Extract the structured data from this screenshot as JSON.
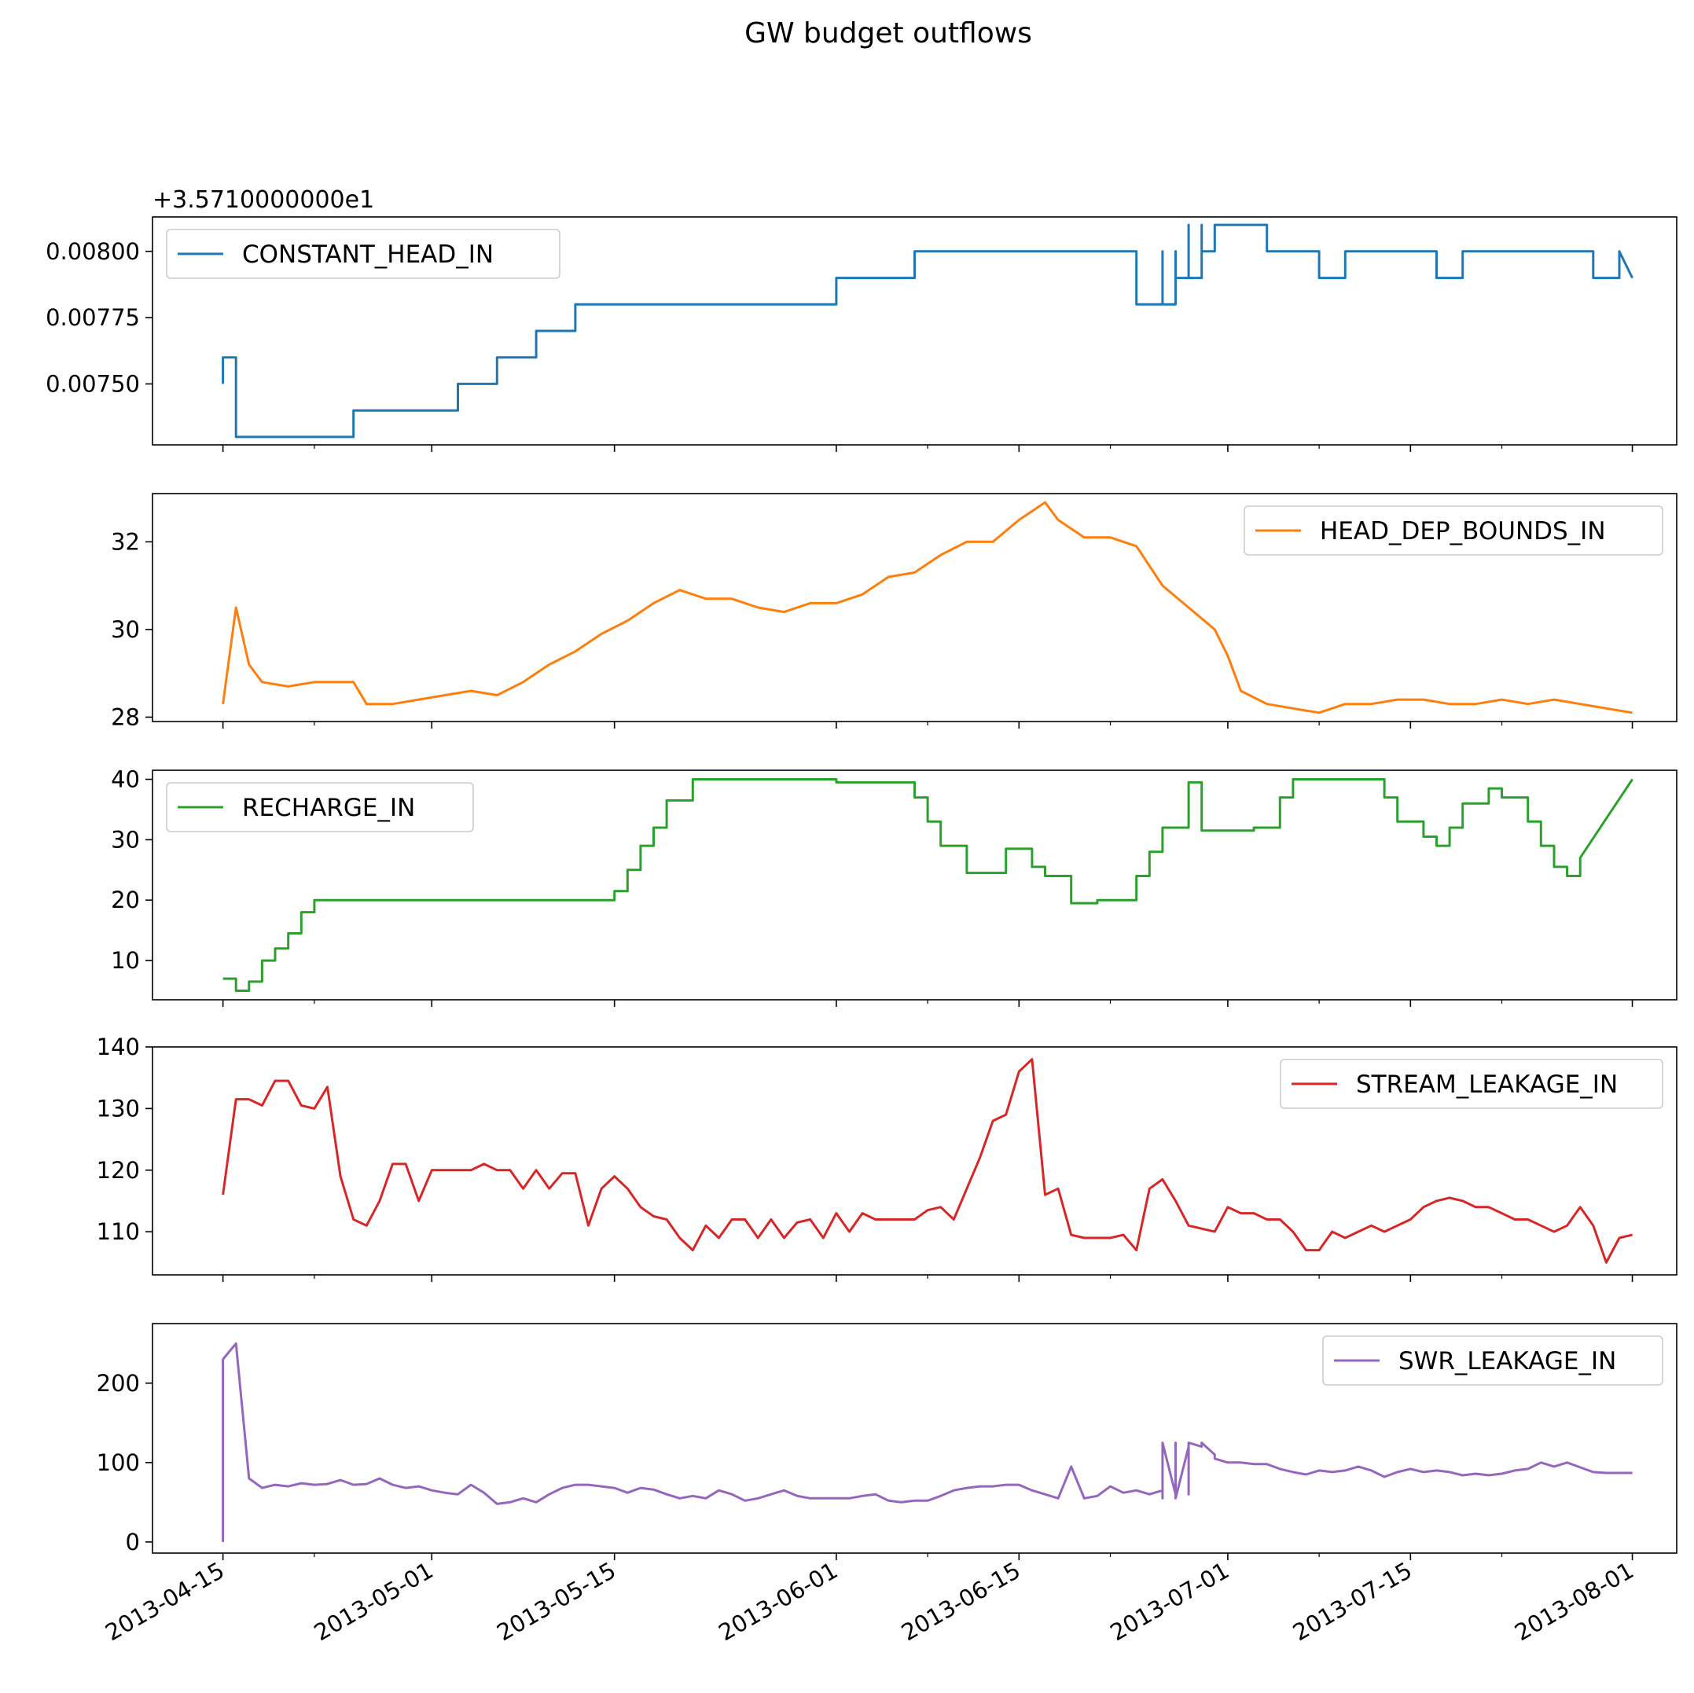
{
  "figure": {
    "title": "GW budget outflows"
  },
  "x_tick_labels": [
    "2013-04-15",
    "2013-05-01",
    "2013-05-15",
    "2013-06-01",
    "2013-06-15",
    "2013-07-01",
    "2013-07-15",
    "2013-08-01"
  ],
  "chart_data": [
    {
      "type": "line",
      "name": "CONSTANT_HEAD_IN",
      "color": "#1f77b4",
      "legend": "top-left",
      "offset_text": "+3.5710000000e1",
      "ylim": [
        0.00727,
        0.00813
      ],
      "yticks": [
        0.0075,
        0.00775,
        0.008
      ],
      "ytick_labels": [
        "0.00750",
        "0.00775",
        "0.00800"
      ],
      "x": [
        "2013-04-15",
        "2013-04-15",
        "2013-04-16",
        "2013-04-16",
        "2013-04-16",
        "2013-04-16",
        "2013-04-25",
        "2013-04-25",
        "2013-05-03",
        "2013-05-03",
        "2013-05-06",
        "2013-05-06",
        "2013-05-09",
        "2013-05-09",
        "2013-05-12",
        "2013-05-12",
        "2013-06-01",
        "2013-06-01",
        "2013-06-07",
        "2013-06-07",
        "2013-06-24",
        "2013-06-24",
        "2013-06-26",
        "2013-06-26",
        "2013-06-26",
        "2013-06-27",
        "2013-06-27",
        "2013-06-27",
        "2013-06-27",
        "2013-06-28",
        "2013-06-28",
        "2013-06-28",
        "2013-06-29",
        "2013-06-29",
        "2013-06-29",
        "2013-06-30",
        "2013-06-30",
        "2013-07-01",
        "2013-07-01",
        "2013-07-04",
        "2013-07-04",
        "2013-07-08",
        "2013-07-08",
        "2013-07-10",
        "2013-07-10",
        "2013-07-17",
        "2013-07-17",
        "2013-07-19",
        "2013-07-19",
        "2013-07-29",
        "2013-07-29",
        "2013-07-31",
        "2013-07-31",
        "2013-08-01"
      ],
      "y": [
        0.0075,
        0.0076,
        0.0076,
        0.0075,
        0.0074,
        0.0073,
        0.0073,
        0.0074,
        0.0074,
        0.0075,
        0.0075,
        0.0076,
        0.0076,
        0.0077,
        0.0077,
        0.0078,
        0.0078,
        0.0079,
        0.0079,
        0.008,
        0.008,
        0.0078,
        0.0078,
        0.008,
        0.0078,
        0.0078,
        0.008,
        0.0078,
        0.0079,
        0.0079,
        0.0081,
        0.0079,
        0.0079,
        0.0081,
        0.008,
        0.008,
        0.0081,
        0.0081,
        0.0081,
        0.0081,
        0.008,
        0.008,
        0.0079,
        0.0079,
        0.008,
        0.008,
        0.0079,
        0.0079,
        0.008,
        0.008,
        0.0079,
        0.0079,
        0.008,
        0.0079
      ]
    },
    {
      "type": "line",
      "name": "HEAD_DEP_BOUNDS_IN",
      "color": "#ff7f0e",
      "legend": "top-right",
      "ylim": [
        27.9,
        33.1
      ],
      "yticks": [
        28,
        30,
        32
      ],
      "ytick_labels": [
        "28",
        "30",
        "32"
      ],
      "x": [
        "2013-04-15",
        "2013-04-16",
        "2013-04-17",
        "2013-04-18",
        "2013-04-20",
        "2013-04-22",
        "2013-04-24",
        "2013-04-25",
        "2013-04-26",
        "2013-04-28",
        "2013-04-30",
        "2013-05-02",
        "2013-05-04",
        "2013-05-06",
        "2013-05-08",
        "2013-05-10",
        "2013-05-12",
        "2013-05-14",
        "2013-05-16",
        "2013-05-18",
        "2013-05-20",
        "2013-05-22",
        "2013-05-24",
        "2013-05-26",
        "2013-05-28",
        "2013-05-30",
        "2013-06-01",
        "2013-06-03",
        "2013-06-05",
        "2013-06-07",
        "2013-06-09",
        "2013-06-11",
        "2013-06-13",
        "2013-06-15",
        "2013-06-17",
        "2013-06-18",
        "2013-06-20",
        "2013-06-22",
        "2013-06-24",
        "2013-06-26",
        "2013-06-28",
        "2013-06-30",
        "2013-07-01",
        "2013-07-02",
        "2013-07-04",
        "2013-07-06",
        "2013-07-08",
        "2013-07-10",
        "2013-07-12",
        "2013-07-14",
        "2013-07-16",
        "2013-07-18",
        "2013-07-20",
        "2013-07-22",
        "2013-07-24",
        "2013-07-26",
        "2013-07-28",
        "2013-07-30",
        "2013-08-01"
      ],
      "y": [
        28.3,
        30.5,
        29.2,
        28.8,
        28.7,
        28.8,
        28.8,
        28.8,
        28.3,
        28.3,
        28.4,
        28.5,
        28.6,
        28.5,
        28.8,
        29.2,
        29.5,
        29.9,
        30.2,
        30.6,
        30.9,
        30.7,
        30.7,
        30.5,
        30.4,
        30.6,
        30.6,
        30.8,
        31.2,
        31.3,
        31.7,
        32.0,
        32.0,
        32.5,
        32.9,
        32.5,
        32.1,
        32.1,
        31.9,
        31.0,
        30.5,
        30.0,
        29.4,
        28.6,
        28.3,
        28.2,
        28.1,
        28.3,
        28.3,
        28.4,
        28.4,
        28.3,
        28.3,
        28.4,
        28.3,
        28.4,
        28.3,
        28.2,
        28.1
      ]
    },
    {
      "type": "line",
      "name": "RECHARGE_IN",
      "color": "#2ca02c",
      "legend": "top-left",
      "ylim": [
        3.5,
        41.5
      ],
      "yticks": [
        10,
        20,
        30,
        40
      ],
      "ytick_labels": [
        "10",
        "20",
        "30",
        "40"
      ],
      "x": [
        "2013-04-15",
        "2013-04-16",
        "2013-04-16",
        "2013-04-17",
        "2013-04-17",
        "2013-04-18",
        "2013-04-18",
        "2013-04-19",
        "2013-04-19",
        "2013-04-20",
        "2013-04-20",
        "2013-04-21",
        "2013-04-21",
        "2013-04-22",
        "2013-04-22",
        "2013-05-15",
        "2013-05-15",
        "2013-05-16",
        "2013-05-16",
        "2013-05-17",
        "2013-05-17",
        "2013-05-18",
        "2013-05-18",
        "2013-05-19",
        "2013-05-19",
        "2013-05-21",
        "2013-05-21",
        "2013-06-01",
        "2013-06-01",
        "2013-06-07",
        "2013-06-07",
        "2013-06-08",
        "2013-06-08",
        "2013-06-09",
        "2013-06-09",
        "2013-06-11",
        "2013-06-11",
        "2013-06-14",
        "2013-06-14",
        "2013-06-16",
        "2013-06-16",
        "2013-06-17",
        "2013-06-17",
        "2013-06-19",
        "2013-06-19",
        "2013-06-21",
        "2013-06-21",
        "2013-06-24",
        "2013-06-24",
        "2013-06-25",
        "2013-06-25",
        "2013-06-26",
        "2013-06-26",
        "2013-06-28",
        "2013-06-28",
        "2013-06-29",
        "2013-06-29",
        "2013-07-03",
        "2013-07-03",
        "2013-07-05",
        "2013-07-05",
        "2013-07-06",
        "2013-07-06",
        "2013-07-13",
        "2013-07-13",
        "2013-07-14",
        "2013-07-14",
        "2013-07-16",
        "2013-07-16",
        "2013-07-17",
        "2013-07-17",
        "2013-07-18",
        "2013-07-18",
        "2013-07-19",
        "2013-07-19",
        "2013-07-21",
        "2013-07-21",
        "2013-07-22",
        "2013-07-22",
        "2013-07-24",
        "2013-07-24",
        "2013-07-25",
        "2013-07-25",
        "2013-07-26",
        "2013-07-26",
        "2013-07-27",
        "2013-07-27",
        "2013-07-28",
        "2013-07-28",
        "2013-08-01"
      ],
      "y": [
        7,
        7,
        5,
        5,
        6.5,
        6.5,
        10,
        10,
        12,
        12,
        14.5,
        14.5,
        18,
        18,
        20,
        20,
        21.5,
        21.5,
        25,
        25,
        29,
        29,
        32,
        32,
        36.5,
        36.5,
        40,
        40,
        39.5,
        39.5,
        37,
        37,
        33,
        33,
        29,
        29,
        24.5,
        24.5,
        28.5,
        28.5,
        25.5,
        25.5,
        24,
        24,
        19.5,
        19.5,
        20,
        20,
        24,
        24,
        28,
        28,
        32,
        32,
        39.5,
        39.5,
        31.5,
        31.5,
        32,
        32,
        37,
        37,
        40,
        40,
        37,
        37,
        33,
        33,
        30.5,
        30.5,
        29,
        29,
        32,
        32,
        36,
        36,
        38.5,
        38.5,
        37,
        37,
        33,
        33,
        29,
        29,
        25.5,
        25.5,
        24,
        24,
        27,
        40
      ]
    },
    {
      "type": "line",
      "name": "STREAM_LEAKAGE_IN",
      "color": "#d62728",
      "legend": "top-right",
      "ylim": [
        103,
        140
      ],
      "yticks": [
        110,
        120,
        130,
        140
      ],
      "ytick_labels": [
        "110",
        "120",
        "130",
        "140"
      ],
      "x": [
        "2013-04-15",
        "2013-04-16",
        "2013-04-17",
        "2013-04-18",
        "2013-04-19",
        "2013-04-20",
        "2013-04-21",
        "2013-04-22",
        "2013-04-23",
        "2013-04-24",
        "2013-04-25",
        "2013-04-26",
        "2013-04-27",
        "2013-04-28",
        "2013-04-29",
        "2013-04-30",
        "2013-05-01",
        "2013-05-02",
        "2013-05-03",
        "2013-05-04",
        "2013-05-05",
        "2013-05-06",
        "2013-05-07",
        "2013-05-08",
        "2013-05-09",
        "2013-05-10",
        "2013-05-11",
        "2013-05-12",
        "2013-05-13",
        "2013-05-14",
        "2013-05-15",
        "2013-05-16",
        "2013-05-17",
        "2013-05-18",
        "2013-05-19",
        "2013-05-20",
        "2013-05-21",
        "2013-05-22",
        "2013-05-23",
        "2013-05-24",
        "2013-05-25",
        "2013-05-26",
        "2013-05-27",
        "2013-05-28",
        "2013-05-29",
        "2013-05-30",
        "2013-05-31",
        "2013-06-01",
        "2013-06-02",
        "2013-06-03",
        "2013-06-04",
        "2013-06-05",
        "2013-06-06",
        "2013-06-07",
        "2013-06-08",
        "2013-06-09",
        "2013-06-10",
        "2013-06-11",
        "2013-06-12",
        "2013-06-13",
        "2013-06-14",
        "2013-06-15",
        "2013-06-16",
        "2013-06-17",
        "2013-06-18",
        "2013-06-19",
        "2013-06-20",
        "2013-06-21",
        "2013-06-22",
        "2013-06-23",
        "2013-06-24",
        "2013-06-25",
        "2013-06-26",
        "2013-06-27",
        "2013-06-28",
        "2013-06-29",
        "2013-06-30",
        "2013-07-01",
        "2013-07-02",
        "2013-07-03",
        "2013-07-04",
        "2013-07-05",
        "2013-07-06",
        "2013-07-07",
        "2013-07-08",
        "2013-07-09",
        "2013-07-10",
        "2013-07-11",
        "2013-07-12",
        "2013-07-13",
        "2013-07-14",
        "2013-07-15",
        "2013-07-16",
        "2013-07-17",
        "2013-07-18",
        "2013-07-19",
        "2013-07-20",
        "2013-07-21",
        "2013-07-22",
        "2013-07-23",
        "2013-07-24",
        "2013-07-25",
        "2013-07-26",
        "2013-07-27",
        "2013-07-28",
        "2013-07-29",
        "2013-07-30",
        "2013-07-31",
        "2013-08-01"
      ],
      "y": [
        116,
        131.5,
        131.5,
        130.5,
        134.5,
        134.5,
        130.5,
        130,
        133.5,
        119,
        112,
        111,
        115,
        121,
        121,
        115,
        120,
        120,
        120,
        120,
        121,
        120,
        120,
        117,
        120,
        117,
        119.5,
        119.5,
        111,
        117,
        119,
        117,
        114,
        112.5,
        112,
        109,
        107,
        111,
        109,
        112,
        112,
        109,
        112,
        109,
        111.5,
        112,
        109,
        113,
        110,
        113,
        112,
        112,
        112,
        112,
        113.5,
        114,
        112,
        117,
        122,
        128,
        129,
        136,
        138,
        116,
        117,
        109.5,
        109,
        109,
        109,
        109.5,
        107,
        117,
        118.5,
        115,
        111,
        110.5,
        110,
        114,
        113,
        113,
        112,
        112,
        110,
        107,
        107,
        110,
        109,
        110,
        111,
        110,
        111,
        112,
        114,
        115,
        115.5,
        115,
        114,
        114,
        113,
        112,
        112,
        111,
        110,
        111,
        114,
        111,
        105,
        109,
        109.5
      ]
    },
    {
      "type": "line",
      "name": "SWR_LEAKAGE_IN",
      "color": "#9467bd",
      "legend": "top-right",
      "ylim": [
        -14,
        275
      ],
      "yticks": [
        0,
        100,
        200
      ],
      "ytick_labels": [
        "0",
        "100",
        "200"
      ],
      "x": [
        "2013-04-15",
        "2013-04-15",
        "2013-04-16",
        "2013-04-17",
        "2013-04-18",
        "2013-04-19",
        "2013-04-20",
        "2013-04-21",
        "2013-04-22",
        "2013-04-23",
        "2013-04-24",
        "2013-04-25",
        "2013-04-26",
        "2013-04-27",
        "2013-04-28",
        "2013-04-29",
        "2013-04-30",
        "2013-05-01",
        "2013-05-02",
        "2013-05-03",
        "2013-05-04",
        "2013-05-05",
        "2013-05-06",
        "2013-05-07",
        "2013-05-08",
        "2013-05-09",
        "2013-05-10",
        "2013-05-11",
        "2013-05-12",
        "2013-05-13",
        "2013-05-14",
        "2013-05-15",
        "2013-05-16",
        "2013-05-17",
        "2013-05-18",
        "2013-05-19",
        "2013-05-20",
        "2013-05-21",
        "2013-05-22",
        "2013-05-23",
        "2013-05-24",
        "2013-05-25",
        "2013-05-26",
        "2013-05-27",
        "2013-05-28",
        "2013-05-29",
        "2013-05-30",
        "2013-05-31",
        "2013-06-01",
        "2013-06-02",
        "2013-06-03",
        "2013-06-04",
        "2013-06-05",
        "2013-06-06",
        "2013-06-07",
        "2013-06-08",
        "2013-06-09",
        "2013-06-10",
        "2013-06-11",
        "2013-06-12",
        "2013-06-13",
        "2013-06-14",
        "2013-06-15",
        "2013-06-16",
        "2013-06-17",
        "2013-06-18",
        "2013-06-19",
        "2013-06-20",
        "2013-06-21",
        "2013-06-22",
        "2013-06-23",
        "2013-06-24",
        "2013-06-25",
        "2013-06-26",
        "2013-06-26",
        "2013-06-26",
        "2013-06-27",
        "2013-06-27",
        "2013-06-27",
        "2013-06-28",
        "2013-06-28",
        "2013-06-28",
        "2013-06-29",
        "2013-06-29",
        "2013-06-30",
        "2013-06-30",
        "2013-07-01",
        "2013-07-02",
        "2013-07-03",
        "2013-07-04",
        "2013-07-05",
        "2013-07-06",
        "2013-07-07",
        "2013-07-08",
        "2013-07-09",
        "2013-07-10",
        "2013-07-11",
        "2013-07-12",
        "2013-07-13",
        "2013-07-14",
        "2013-07-15",
        "2013-07-16",
        "2013-07-17",
        "2013-07-18",
        "2013-07-19",
        "2013-07-20",
        "2013-07-21",
        "2013-07-22",
        "2013-07-23",
        "2013-07-24",
        "2013-07-25",
        "2013-07-26",
        "2013-07-27",
        "2013-07-28",
        "2013-07-29",
        "2013-07-30",
        "2013-07-31",
        "2013-08-01"
      ],
      "y": [
        0,
        230,
        250,
        80,
        68,
        72,
        70,
        74,
        72,
        73,
        78,
        72,
        73,
        80,
        72,
        68,
        70,
        65,
        62,
        60,
        72,
        62,
        48,
        50,
        55,
        50,
        60,
        68,
        72,
        72,
        70,
        68,
        62,
        68,
        66,
        60,
        55,
        58,
        55,
        65,
        60,
        52,
        55,
        60,
        65,
        58,
        55,
        55,
        55,
        55,
        58,
        60,
        52,
        50,
        52,
        52,
        58,
        65,
        68,
        70,
        70,
        72,
        72,
        65,
        60,
        55,
        95,
        55,
        58,
        70,
        62,
        65,
        60,
        65,
        55,
        125,
        60,
        125,
        55,
        120,
        60,
        125,
        120,
        125,
        110,
        105,
        100,
        100,
        98,
        98,
        92,
        88,
        85,
        90,
        88,
        90,
        95,
        90,
        82,
        88,
        92,
        88,
        90,
        88,
        84,
        86,
        84,
        86,
        90,
        92,
        100,
        95,
        100,
        94,
        88,
        87,
        87,
        87
      ]
    }
  ]
}
